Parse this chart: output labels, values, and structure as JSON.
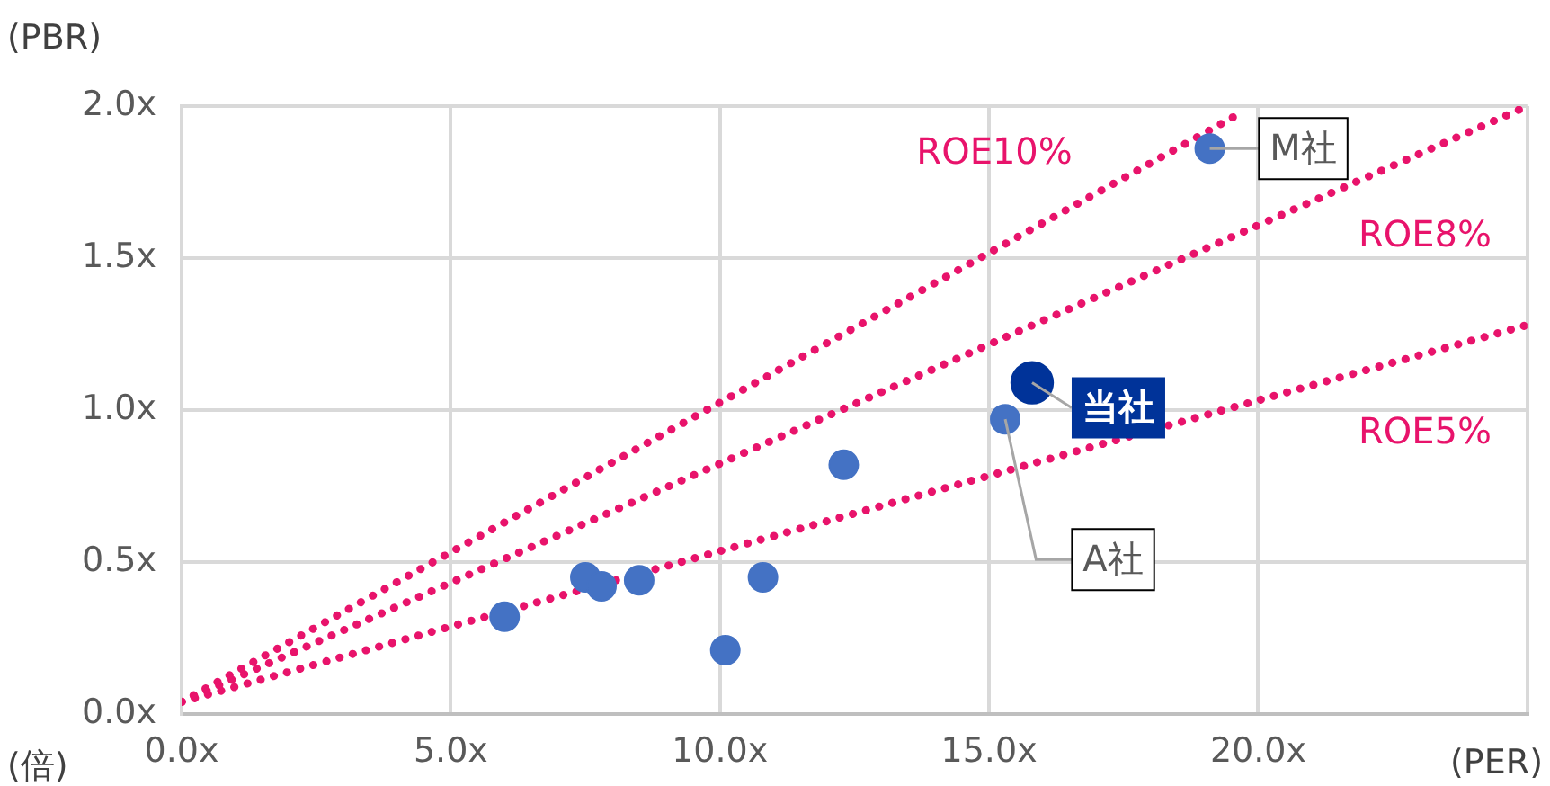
{
  "chart_data": {
    "type": "scatter",
    "xlabel": "(PER)",
    "ylabel": "(PBR)",
    "annotations": [
      "(倍)"
    ],
    "xlim": [
      0,
      25
    ],
    "ylim": [
      0,
      2
    ],
    "xticks": [
      {
        "value": 0,
        "label": "0.0x"
      },
      {
        "value": 5,
        "label": "5.0x"
      },
      {
        "value": 10,
        "label": "10.0x"
      },
      {
        "value": 15,
        "label": "15.0x"
      },
      {
        "value": 20,
        "label": "20.0x"
      },
      {
        "value": 25,
        "label": null
      }
    ],
    "yticks": [
      {
        "value": 0,
        "label": "0.0x"
      },
      {
        "value": 0.5,
        "label": "0.5x"
      },
      {
        "value": 1,
        "label": "1.0x"
      },
      {
        "value": 1.5,
        "label": "1.5x"
      },
      {
        "value": 2,
        "label": "2.0x"
      }
    ],
    "grid": true,
    "legend": false,
    "marker": "circle",
    "series": [
      {
        "type": "line",
        "name": "ROE10%",
        "color": "#e8136b",
        "marker": "none",
        "line_style": "dotted",
        "x": [
          0,
          19.7
        ],
        "values": [
          0.04,
          1.98
        ]
      },
      {
        "type": "line",
        "name": "ROE8%",
        "color": "#e8136b",
        "marker": "none",
        "line_style": "dotted",
        "x": [
          0,
          25
        ],
        "values": [
          0.04,
          2.0
        ]
      },
      {
        "type": "line",
        "name": "ROE5%",
        "color": "#e8136b",
        "marker": "none",
        "line_style": "dotted",
        "x": [
          0,
          25
        ],
        "values": [
          0.04,
          1.28
        ]
      },
      {
        "type": "scatter",
        "color": "#4472c4",
        "x": [
          6.0,
          7.5,
          7.8,
          8.5,
          10.1,
          10.8,
          12.3,
          15.3,
          19.1
        ],
        "values": [
          0.32,
          0.45,
          0.42,
          0.44,
          0.21,
          0.45,
          0.82,
          0.97,
          1.86
        ],
        "value_labels": [
          null,
          null,
          null,
          null,
          null,
          null,
          null,
          "A社",
          "M社"
        ]
      },
      {
        "type": "scatter",
        "color": "#003399",
        "x": [
          15.8
        ],
        "values": [
          1.09
        ],
        "value_labels": [
          "当社"
        ]
      }
    ]
  }
}
